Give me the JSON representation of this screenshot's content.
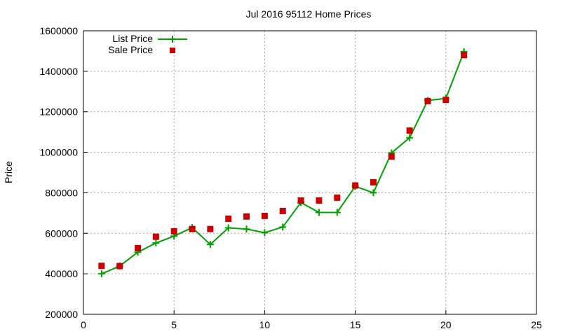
{
  "chart_data": {
    "type": "line",
    "title": "Jul 2016 95112 Home Prices",
    "xlabel": "",
    "ylabel": "Price",
    "xlim": [
      0,
      25
    ],
    "ylim": [
      200000,
      1600000
    ],
    "x_ticks": [
      0,
      5,
      10,
      15,
      20,
      25
    ],
    "y_ticks": [
      200000,
      400000,
      600000,
      800000,
      1000000,
      1200000,
      1400000,
      1600000
    ],
    "grid": true,
    "legend_position": "top-left",
    "x": [
      1,
      2,
      3,
      4,
      5,
      6,
      7,
      8,
      9,
      10,
      11,
      12,
      13,
      14,
      15,
      16,
      17,
      18,
      19,
      20,
      21
    ],
    "series": [
      {
        "name": "List Price",
        "style": "line+cross",
        "color": "#00a000",
        "values": [
          400000,
          438000,
          507000,
          552000,
          586000,
          628000,
          545000,
          627000,
          621000,
          603000,
          631000,
          752000,
          703000,
          703000,
          832000,
          800000,
          997000,
          1072000,
          1256000,
          1266000,
          1497000
        ]
      },
      {
        "name": "Sale Price",
        "style": "square-marker",
        "color": "#cc0000",
        "values": [
          439000,
          438000,
          527000,
          583000,
          610000,
          621000,
          621000,
          672000,
          683000,
          686000,
          710000,
          762000,
          762000,
          776000,
          836000,
          852000,
          979000,
          1107000,
          1253000,
          1259000,
          1480000
        ]
      }
    ]
  }
}
